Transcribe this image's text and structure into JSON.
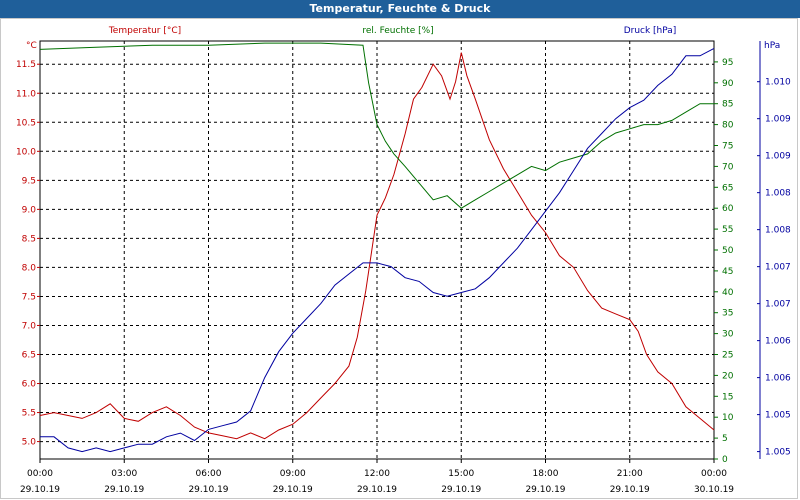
{
  "header": {
    "title": "Temperatur, Feuchte & Druck"
  },
  "colors": {
    "temperature": "#c00000",
    "humidity": "#007000",
    "pressure": "#0000a0",
    "titlebar": "#1f5f9a",
    "grid": "#000000"
  },
  "chart_data": {
    "type": "line",
    "grid": true,
    "x_ticks": [
      {
        "time": "00:00",
        "date": "29.10.19"
      },
      {
        "time": "03:00",
        "date": "29.10.19"
      },
      {
        "time": "06:00",
        "date": "29.10.19"
      },
      {
        "time": "09:00",
        "date": "29.10.19"
      },
      {
        "time": "12:00",
        "date": "29.10.19"
      },
      {
        "time": "15:00",
        "date": "29.10.19"
      },
      {
        "time": "18:00",
        "date": "29.10.19"
      },
      {
        "time": "21:00",
        "date": "29.10.19"
      },
      {
        "time": "00:00",
        "date": "30.10.19"
      }
    ],
    "xlim": [
      0,
      24
    ],
    "axes": {
      "temperature": {
        "label": "Temperatur [°C]",
        "unit": "°C",
        "ylim": [
          4.7,
          11.9
        ],
        "ticks": [
          "5.0",
          "5.5",
          "6.0",
          "6.5",
          "7.0",
          "7.5",
          "8.0",
          "8.5",
          "9.0",
          "9.5",
          "10.0",
          "10.5",
          "11.0",
          "11.5"
        ],
        "tick_values": [
          5.0,
          5.5,
          6.0,
          6.5,
          7.0,
          7.5,
          8.0,
          8.5,
          9.0,
          9.5,
          10.0,
          10.5,
          11.0,
          11.5
        ]
      },
      "humidity": {
        "label": "rel. Feuchte [%]",
        "unit": "%",
        "ylim": [
          0,
          100
        ],
        "ticks": [
          "0",
          "5",
          "10",
          "15",
          "20",
          "25",
          "30",
          "35",
          "40",
          "45",
          "50",
          "55",
          "60",
          "65",
          "70",
          "75",
          "80",
          "85",
          "90",
          "95"
        ],
        "tick_values": [
          0,
          5,
          10,
          15,
          20,
          25,
          30,
          35,
          40,
          45,
          50,
          55,
          60,
          65,
          70,
          75,
          80,
          85,
          90,
          95
        ]
      },
      "pressure": {
        "label": "Druck [hPa]",
        "unit": "hPa",
        "ylim": [
          1004.9,
          1010.55
        ],
        "ticks": [
          "1.005",
          "1.005",
          "1.006",
          "1.006",
          "1.007",
          "1.007",
          "1.008",
          "1.008",
          "1.009",
          "1.009",
          "1.010"
        ],
        "tick_values": [
          1005.0,
          1005.5,
          1006.0,
          1006.5,
          1007.0,
          1007.5,
          1008.0,
          1008.5,
          1009.0,
          1009.5,
          1010.0
        ]
      }
    },
    "series": [
      {
        "name": "Temperatur [°C]",
        "axis": "temperature",
        "x": [
          0,
          0.5,
          1,
          1.5,
          2,
          2.5,
          3,
          3.5,
          4,
          4.5,
          5,
          5.5,
          6,
          6.5,
          7,
          7.5,
          8,
          8.5,
          9,
          9.5,
          10,
          10.5,
          11,
          11.3,
          11.6,
          12,
          12.3,
          12.6,
          13,
          13.3,
          13.6,
          14,
          14.3,
          14.6,
          14.8,
          15,
          15.2,
          15.5,
          16,
          16.5,
          17,
          17.5,
          18,
          18.5,
          19,
          19.5,
          20,
          20.5,
          21,
          21.3,
          21.6,
          22,
          22.5,
          23,
          23.5,
          24
        ],
        "values": [
          5.45,
          5.5,
          5.45,
          5.4,
          5.5,
          5.65,
          5.4,
          5.35,
          5.5,
          5.6,
          5.45,
          5.25,
          5.15,
          5.1,
          5.05,
          5.15,
          5.05,
          5.2,
          5.3,
          5.5,
          5.75,
          6.0,
          6.3,
          6.8,
          7.6,
          8.9,
          9.2,
          9.6,
          10.3,
          10.9,
          11.1,
          11.5,
          11.3,
          10.9,
          11.2,
          11.7,
          11.3,
          10.9,
          10.2,
          9.7,
          9.3,
          8.9,
          8.6,
          8.2,
          8.0,
          7.6,
          7.3,
          7.2,
          7.1,
          6.9,
          6.5,
          6.2,
          6.0,
          5.6,
          5.4,
          5.2
        ]
      },
      {
        "name": "rel. Feuchte [%]",
        "axis": "humidity",
        "x": [
          0,
          2,
          4,
          6,
          8,
          10,
          11.5,
          11.7,
          12,
          12.3,
          12.6,
          13,
          13.5,
          14,
          14.5,
          15,
          15.5,
          16,
          16.5,
          17,
          17.5,
          18,
          18.5,
          19,
          19.5,
          20,
          20.5,
          21,
          21.5,
          22,
          22.5,
          23,
          23.5,
          24
        ],
        "values": [
          98,
          98.5,
          99,
          99,
          99.5,
          99.5,
          99,
          90,
          80,
          76,
          73,
          70,
          66,
          62,
          63,
          60,
          62,
          64,
          66,
          68,
          70,
          69,
          71,
          72,
          73,
          76,
          78,
          79,
          80,
          80,
          81,
          83,
          85,
          85
        ]
      },
      {
        "name": "Druck [hPa]",
        "axis": "pressure",
        "x": [
          0,
          0.5,
          1,
          1.5,
          2,
          2.5,
          3,
          3.5,
          4,
          4.5,
          5,
          5.5,
          6,
          6.5,
          7,
          7.5,
          8,
          8.5,
          9,
          9.5,
          10,
          10.5,
          11,
          11.5,
          12,
          12.5,
          13,
          13.5,
          14,
          14.5,
          15,
          15.5,
          16,
          16.5,
          17,
          17.5,
          18,
          18.5,
          19,
          19.5,
          20,
          20.5,
          21,
          21.5,
          22,
          22.5,
          23,
          23.5,
          24
        ],
        "values": [
          1005.2,
          1005.2,
          1005.05,
          1005.0,
          1005.05,
          1005.0,
          1005.05,
          1005.1,
          1005.1,
          1005.2,
          1005.25,
          1005.15,
          1005.3,
          1005.35,
          1005.4,
          1005.55,
          1006.0,
          1006.35,
          1006.6,
          1006.8,
          1007.0,
          1007.25,
          1007.4,
          1007.55,
          1007.55,
          1007.5,
          1007.35,
          1007.3,
          1007.15,
          1007.1,
          1007.15,
          1007.2,
          1007.35,
          1007.55,
          1007.75,
          1008.0,
          1008.25,
          1008.5,
          1008.8,
          1009.1,
          1009.3,
          1009.5,
          1009.65,
          1009.75,
          1009.95,
          1010.1,
          1010.35,
          1010.35,
          1010.45
        ]
      }
    ]
  }
}
